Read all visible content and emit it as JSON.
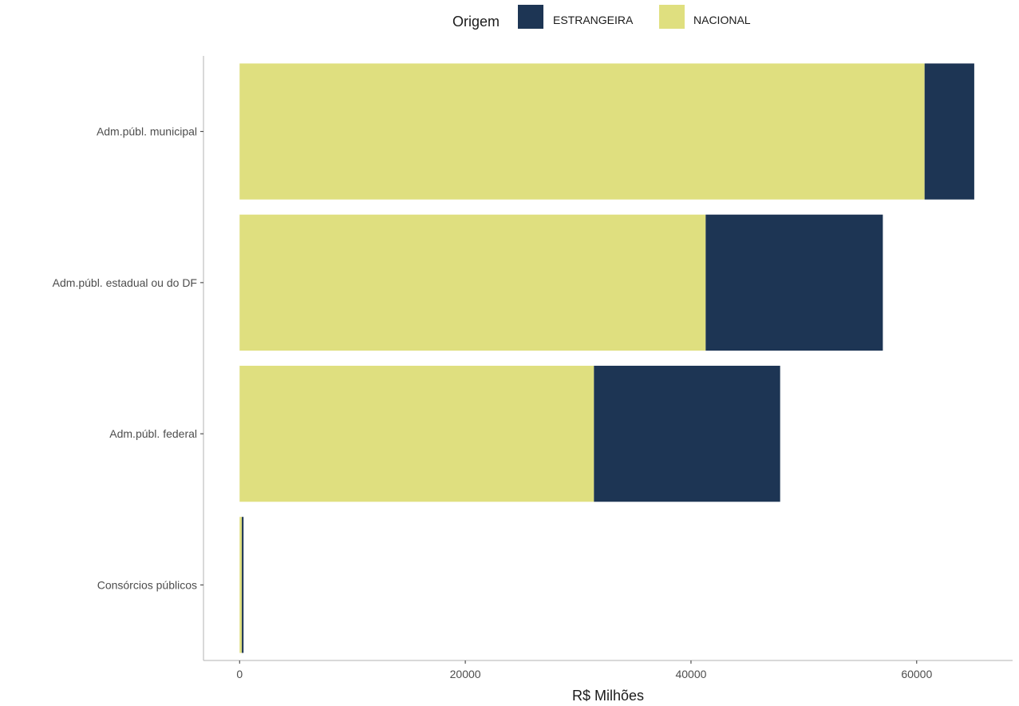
{
  "chart_data": {
    "type": "bar",
    "orientation": "horizontal",
    "stacked": true,
    "categories": [
      "Adm.públ. municipal",
      "Adm.públ. estadual ou do DF",
      "Adm.públ. federal",
      "Consórcios públicos"
    ],
    "series": [
      {
        "name": "NACIONAL",
        "color": "#dfdf7f",
        "values": [
          60700,
          41300,
          31400,
          200
        ]
      },
      {
        "name": "ESTRANGEIRA",
        "color": "#1d3554",
        "values": [
          4400,
          15700,
          16500,
          150
        ]
      }
    ],
    "xlabel": "R$ Milhões",
    "ylabel": "",
    "xlim": [
      -3200,
      68500
    ],
    "xticks": [
      0,
      20000,
      40000,
      60000
    ],
    "xtick_labels": [
      "0",
      "20000",
      "40000",
      "60000"
    ],
    "grid": false,
    "legend": {
      "title": "Origem",
      "position": "top",
      "entries": [
        "ESTRANGEIRA",
        "NACIONAL"
      ]
    }
  }
}
